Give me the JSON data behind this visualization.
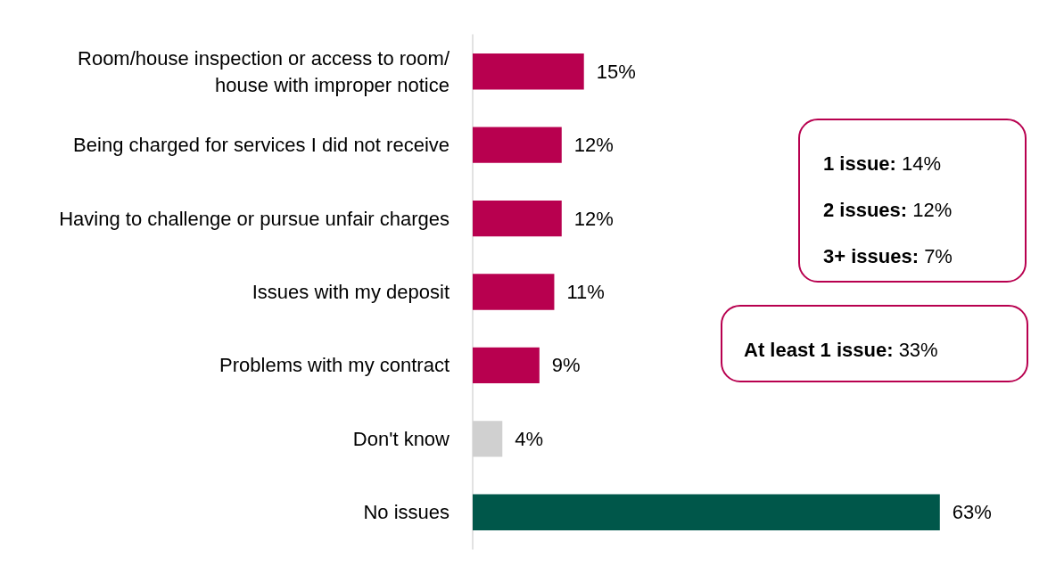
{
  "chart_data": {
    "type": "bar",
    "orientation": "horizontal",
    "categories": [
      "Room/house inspection or access to room/house with improper notice",
      "Being charged for services I did not receive",
      "Having to challenge or pursue unfair charges",
      "Issues with my deposit",
      "Problems with my contract",
      "Don't know",
      "No issues"
    ],
    "values": [
      15,
      12,
      12,
      11,
      9,
      4,
      63
    ],
    "colors": [
      "#b8004f",
      "#b8004f",
      "#b8004f",
      "#b8004f",
      "#b8004f",
      "#d0d0d0",
      "#00574a"
    ],
    "value_labels": [
      "15%",
      "12%",
      "12%",
      "11%",
      "9%",
      "4%",
      "63%"
    ],
    "annotations": [
      "1 issue: 14%",
      "2 issues: 12%",
      "3+ issues: 7%",
      "At least 1 issue: 33%"
    ],
    "grid": false
  }
}
